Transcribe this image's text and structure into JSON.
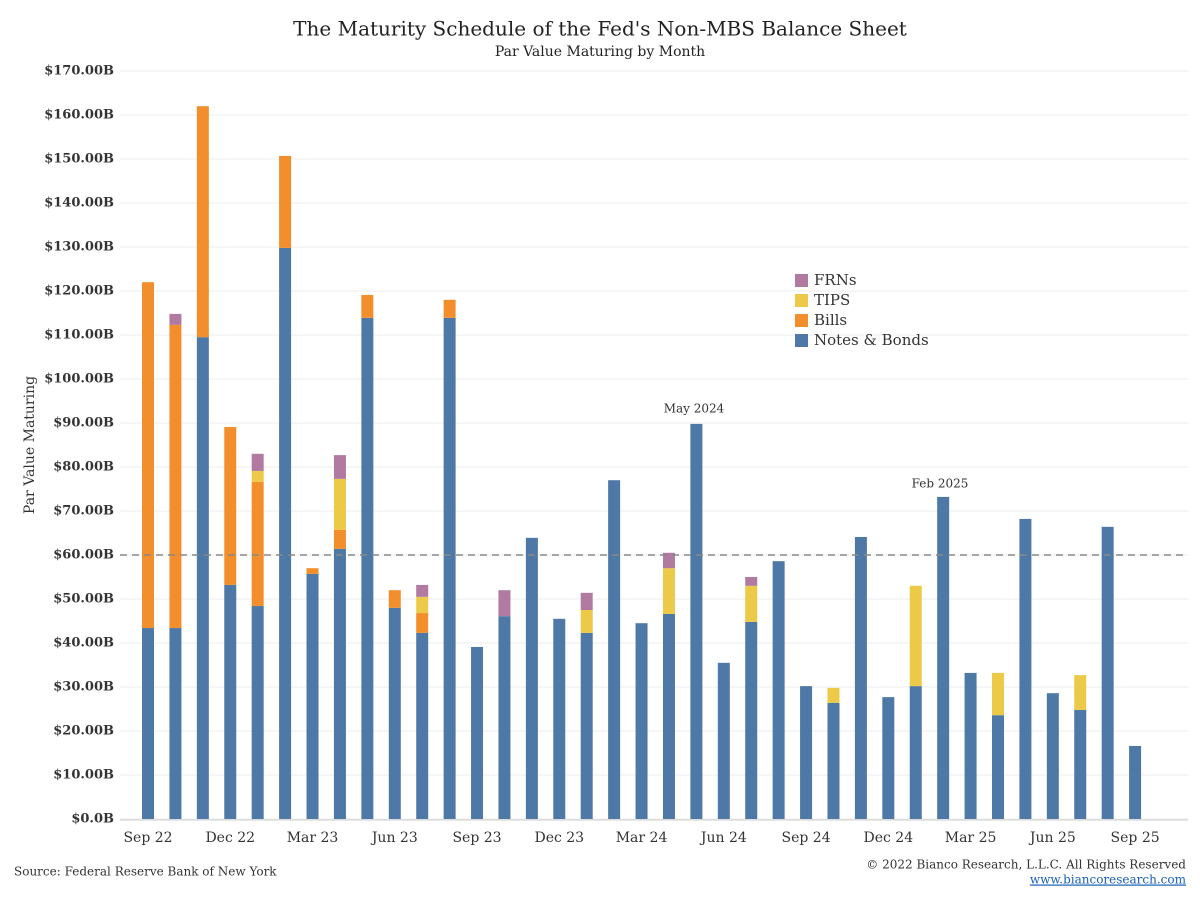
{
  "chart_data": {
    "type": "stacked_bar",
    "title": "The Maturity Schedule of the Fed's Non-MBS Balance Sheet",
    "subtitle": "Par Value Maturing by Month",
    "y_label": "Par Value Maturing",
    "categories": [
      "Sep 22",
      null,
      null,
      "Dec 22",
      null,
      null,
      "Mar 23",
      null,
      null,
      "Jun 23",
      null,
      null,
      "Sep 23",
      null,
      null,
      "Dec 23",
      null,
      null,
      "Mar 24",
      null,
      null,
      "Jun 24",
      null,
      null,
      "Sep 24",
      null,
      null,
      "Dec 24",
      null,
      null,
      "Mar 25",
      null,
      null,
      "Jun 25",
      null,
      null,
      "Sep 25"
    ],
    "series": [
      {
        "name": "Notes & Bonds",
        "color": "#4e79a7",
        "values": [
          43.4,
          43.4,
          109.5,
          53.2,
          48.4,
          129.8,
          55.7,
          61.4,
          113.9,
          48,
          42.3,
          113.9,
          39.1,
          46.1,
          63.9,
          45.5,
          42.3,
          77,
          44.5,
          46.6,
          89.8,
          35.5,
          44.8,
          58.6,
          30.2,
          26.4,
          64.1,
          27.7,
          30.2,
          73.2,
          33.2,
          23.6,
          68.2,
          28.6,
          24.8,
          66.4,
          16.6
        ]
      },
      {
        "name": "Bills",
        "color": "#f28e2b",
        "values": [
          78.6,
          68.9,
          52.5,
          35.9,
          28.2,
          20.9,
          1.3,
          4.3,
          5.2,
          4,
          4.5,
          4.1,
          0,
          0,
          0,
          0,
          0,
          0,
          0,
          0,
          0,
          0,
          0,
          0,
          0,
          0,
          0,
          0,
          0,
          0,
          0,
          0,
          0,
          0,
          0,
          0,
          0
        ]
      },
      {
        "name": "TIPS",
        "color": "#edc948",
        "values": [
          0,
          0,
          0,
          0,
          2.5,
          0,
          0,
          11.6,
          0,
          0,
          3.7,
          0,
          0,
          0,
          0,
          0,
          5.2,
          0,
          0,
          10.4,
          0,
          0,
          8.2,
          0,
          0,
          3.4,
          0,
          0,
          22.8,
          0,
          0,
          9.6,
          0,
          0,
          7.9,
          0,
          0
        ]
      },
      {
        "name": "FRNs",
        "color": "#b07aa1",
        "values": [
          0,
          2.5,
          0,
          0,
          3.9,
          0,
          0,
          5.4,
          0,
          0,
          2.7,
          0,
          0,
          5.9,
          0,
          0,
          3.9,
          0,
          0,
          3.5,
          0,
          0,
          2,
          0,
          0,
          0,
          0,
          0,
          0,
          0,
          0,
          0,
          0,
          0,
          0,
          0,
          0
        ]
      }
    ],
    "ylim": [
      0,
      170
    ],
    "yticks": [
      {
        "value": 0,
        "label": "$0.0B"
      },
      {
        "value": 10,
        "label": "$10.00B"
      },
      {
        "value": 20,
        "label": "$20.00B"
      },
      {
        "value": 30,
        "label": "$30.00B"
      },
      {
        "value": 40,
        "label": "$40.00B"
      },
      {
        "value": 50,
        "label": "$50.00B"
      },
      {
        "value": 60,
        "label": "$60.00B"
      },
      {
        "value": 70,
        "label": "$70.00B"
      },
      {
        "value": 80,
        "label": "$80.00B"
      },
      {
        "value": 90,
        "label": "$90.00B"
      },
      {
        "value": 100,
        "label": "$100.00B"
      },
      {
        "value": 110,
        "label": "$110.00B"
      },
      {
        "value": 120,
        "label": "$120.00B"
      },
      {
        "value": 130,
        "label": "$130.00B"
      },
      {
        "value": 140,
        "label": "$140.00B"
      },
      {
        "value": 150,
        "label": "$150.00B"
      },
      {
        "value": 160,
        "label": "$160.00B"
      },
      {
        "value": 170,
        "label": "$170.00B"
      }
    ],
    "grid": true,
    "reference_line": 60,
    "annotations": [
      "May 2024",
      "Feb 2025"
    ],
    "source": "Source: Federal Reserve Bank of New York",
    "copyright": "© 2022 Bianco Research, L.L.C. All Rights Reserved",
    "website": "www.biancoresearch.com"
  }
}
